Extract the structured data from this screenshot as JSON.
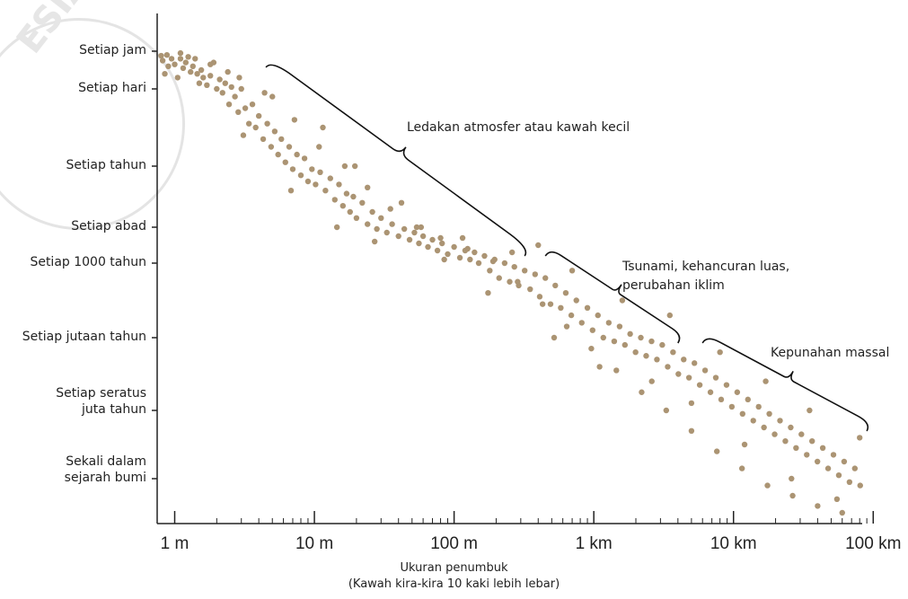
{
  "watermark": {
    "text": "ESIA"
  },
  "chart_data": {
    "type": "scatter",
    "x_scale": "log",
    "xlabel": "Ukuran penumbuk",
    "xlabel_note": "(Kawah kira-kira 10 kaki lebih lebar)",
    "ylabel": "",
    "x_tick_labels": [
      "1 m",
      "10 m",
      "100 m",
      "1 km",
      "10 km",
      "100 km"
    ],
    "x_tick_values_m": [
      1,
      10,
      100,
      1000,
      10000,
      100000
    ],
    "y_tick_labels": [
      "Setiap jam",
      "Setiap hari",
      "Setiap tahun",
      "Setiap abad",
      "Setiap 1000 tahun",
      "Setiap jutaan tahun",
      "Setiap seratus\njuta tahun",
      "Sekali dalam\nsejarah bumi"
    ],
    "annotations": [
      {
        "text": "Ledakan atmosfer atau kawah kecil",
        "x_from_m": 4.5,
        "x_to_m": 320
      },
      {
        "text": "Tsunami, kehancuran luas,\nperubahan iklim",
        "x_from_m": 450,
        "x_to_m": 4000
      },
      {
        "text": "Kepunahan massal",
        "x_from_m": 6000,
        "x_to_m": 90000
      }
    ],
    "trend": "frequency decreases as impactor size increases",
    "points": [
      [
        0.7,
        0.05
      ],
      [
        0.75,
        0.3
      ],
      [
        0.8,
        0.12
      ],
      [
        0.82,
        0.25
      ],
      [
        0.88,
        0.1
      ],
      [
        0.9,
        0.4
      ],
      [
        0.95,
        0.2
      ],
      [
        1.0,
        0.35
      ],
      [
        1.05,
        0.7
      ],
      [
        1.1,
        0.2
      ],
      [
        1.15,
        0.45
      ],
      [
        1.2,
        0.3
      ],
      [
        1.25,
        0.15
      ],
      [
        1.3,
        0.55
      ],
      [
        1.35,
        0.4
      ],
      [
        1.45,
        0.6
      ],
      [
        1.5,
        0.85
      ],
      [
        1.55,
        0.5
      ],
      [
        1.6,
        0.7
      ],
      [
        1.7,
        0.9
      ],
      [
        1.8,
        0.65
      ],
      [
        1.9,
        0.3
      ],
      [
        2.0,
        1.0
      ],
      [
        2.1,
        0.75
      ],
      [
        2.2,
        1.05
      ],
      [
        2.3,
        0.85
      ],
      [
        2.45,
        1.2
      ],
      [
        2.55,
        0.95
      ],
      [
        2.7,
        1.1
      ],
      [
        2.85,
        1.3
      ],
      [
        3.0,
        1.0
      ],
      [
        3.2,
        1.25
      ],
      [
        3.4,
        1.45
      ],
      [
        3.6,
        1.2
      ],
      [
        3.8,
        1.5
      ],
      [
        4.0,
        1.35
      ],
      [
        4.3,
        1.65
      ],
      [
        4.6,
        1.45
      ],
      [
        4.9,
        1.75
      ],
      [
        5.2,
        1.55
      ],
      [
        5.5,
        1.85
      ],
      [
        5.8,
        1.65
      ],
      [
        6.2,
        1.95
      ],
      [
        6.6,
        1.75
      ],
      [
        7.0,
        2.05
      ],
      [
        7.5,
        1.85
      ],
      [
        8.0,
        2.15
      ],
      [
        8.5,
        1.9
      ],
      [
        9.0,
        2.25
      ],
      [
        9.6,
        2.05
      ],
      [
        10.2,
        2.3
      ],
      [
        11,
        2.1
      ],
      [
        12,
        2.4
      ],
      [
        13,
        2.2
      ],
      [
        14,
        2.55
      ],
      [
        15,
        2.3
      ],
      [
        16,
        2.65
      ],
      [
        17,
        2.45
      ],
      [
        18,
        2.75
      ],
      [
        19,
        2.5
      ],
      [
        20,
        2.85
      ],
      [
        22,
        2.6
      ],
      [
        24,
        2.95
      ],
      [
        26,
        2.75
      ],
      [
        28,
        3.05
      ],
      [
        30,
        2.85
      ],
      [
        33,
        3.15
      ],
      [
        36,
        2.95
      ],
      [
        40,
        3.25
      ],
      [
        44,
        3.05
      ],
      [
        48,
        3.35
      ],
      [
        52,
        3.15
      ],
      [
        56,
        3.45
      ],
      [
        60,
        3.25
      ],
      [
        65,
        3.55
      ],
      [
        70,
        3.35
      ],
      [
        76,
        3.65
      ],
      [
        82,
        3.45
      ],
      [
        90,
        3.75
      ],
      [
        100,
        3.55
      ],
      [
        110,
        3.85
      ],
      [
        120,
        3.65
      ],
      [
        130,
        3.9
      ],
      [
        140,
        3.7
      ],
      [
        150,
        4.0
      ],
      [
        165,
        3.8
      ],
      [
        180,
        4.1
      ],
      [
        195,
        3.9
      ],
      [
        210,
        4.2
      ],
      [
        230,
        4.0
      ],
      [
        250,
        4.25
      ],
      [
        270,
        4.05
      ],
      [
        290,
        4.3
      ],
      [
        320,
        4.1
      ],
      [
        350,
        4.35
      ],
      [
        380,
        4.15
      ],
      [
        410,
        4.45
      ],
      [
        450,
        4.2
      ],
      [
        490,
        4.55
      ],
      [
        530,
        4.3
      ],
      [
        580,
        4.6
      ],
      [
        630,
        4.4
      ],
      [
        690,
        4.7
      ],
      [
        750,
        4.5
      ],
      [
        820,
        4.8
      ],
      [
        900,
        4.6
      ],
      [
        980,
        4.9
      ],
      [
        1070,
        4.7
      ],
      [
        1170,
        5.0
      ],
      [
        1280,
        4.8
      ],
      [
        1400,
        5.05
      ],
      [
        1530,
        4.85
      ],
      [
        1670,
        5.1
      ],
      [
        1820,
        4.95
      ],
      [
        1990,
        5.2
      ],
      [
        2170,
        5.0
      ],
      [
        2370,
        5.25
      ],
      [
        2590,
        5.05
      ],
      [
        2830,
        5.3
      ],
      [
        3090,
        5.1
      ],
      [
        3380,
        5.4
      ],
      [
        3690,
        5.2
      ],
      [
        4030,
        5.5
      ],
      [
        4400,
        5.3
      ],
      [
        4800,
        5.55
      ],
      [
        5250,
        5.35
      ],
      [
        5730,
        5.65
      ],
      [
        6260,
        5.45
      ],
      [
        6840,
        5.75
      ],
      [
        7470,
        5.55
      ],
      [
        8160,
        5.85
      ],
      [
        8910,
        5.65
      ],
      [
        9730,
        5.95
      ],
      [
        10630,
        5.75
      ],
      [
        11610,
        6.05
      ],
      [
        12680,
        5.85
      ],
      [
        13850,
        6.15
      ],
      [
        15130,
        5.95
      ],
      [
        16520,
        6.25
      ],
      [
        18040,
        6.05
      ],
      [
        19700,
        6.35
      ],
      [
        21520,
        6.15
      ],
      [
        23500,
        6.45
      ],
      [
        25670,
        6.25
      ],
      [
        28030,
        6.55
      ],
      [
        30610,
        6.35
      ],
      [
        33430,
        6.65
      ],
      [
        36510,
        6.45
      ],
      [
        39870,
        6.75
      ],
      [
        43540,
        6.55
      ],
      [
        47550,
        6.85
      ],
      [
        51930,
        6.65
      ],
      [
        56710,
        6.95
      ],
      [
        61930,
        6.75
      ],
      [
        67640,
        7.05
      ],
      [
        73870,
        6.85
      ],
      [
        80670,
        7.1
      ],
      [
        88100,
        6.95
      ],
      [
        96200,
        7.2
      ],
      [
        0.85,
        0.6
      ],
      [
        1.4,
        0.2
      ],
      [
        2.4,
        0.55
      ],
      [
        3.1,
        1.6
      ],
      [
        5.0,
        1.1
      ],
      [
        6.8,
        2.4
      ],
      [
        11.5,
        1.5
      ],
      [
        14.5,
        3.0
      ],
      [
        19.5,
        2.0
      ],
      [
        27,
        3.4
      ],
      [
        42,
        2.6
      ],
      [
        58,
        3.0
      ],
      [
        85,
        3.9
      ],
      [
        115,
        3.3
      ],
      [
        175,
        4.4
      ],
      [
        260,
        3.7
      ],
      [
        400,
        3.5
      ],
      [
        520,
        5.0
      ],
      [
        700,
        4.1
      ],
      [
        1100,
        5.4
      ],
      [
        1600,
        4.5
      ],
      [
        2600,
        5.6
      ],
      [
        3500,
        4.7
      ],
      [
        5000,
        5.9
      ],
      [
        8000,
        5.2
      ],
      [
        12000,
        6.5
      ],
      [
        17000,
        5.6
      ],
      [
        26000,
        7.0
      ],
      [
        35000,
        6.0
      ],
      [
        55000,
        7.3
      ],
      [
        80000,
        6.4
      ],
      [
        1.1,
        0.05
      ],
      [
        1.8,
        0.35
      ],
      [
        2.9,
        0.7
      ],
      [
        4.4,
        1.05
      ],
      [
        7.2,
        1.4
      ],
      [
        10.8,
        1.75
      ],
      [
        16.5,
        2.0
      ],
      [
        24,
        2.35
      ],
      [
        35,
        2.7
      ],
      [
        54,
        3.0
      ],
      [
        80,
        3.3
      ],
      [
        125,
        3.6
      ],
      [
        190,
        3.95
      ],
      [
        285,
        4.25
      ],
      [
        430,
        4.55
      ],
      [
        640,
        4.85
      ],
      [
        960,
        5.15
      ],
      [
        1450,
        5.45
      ],
      [
        2200,
        5.75
      ],
      [
        3300,
        6.0
      ],
      [
        5000,
        6.3
      ],
      [
        7600,
        6.6
      ],
      [
        11500,
        6.85
      ],
      [
        17500,
        7.1
      ],
      [
        26500,
        7.25
      ],
      [
        40000,
        7.4
      ],
      [
        60000,
        7.5
      ],
      [
        90000,
        7.55
      ]
    ]
  }
}
